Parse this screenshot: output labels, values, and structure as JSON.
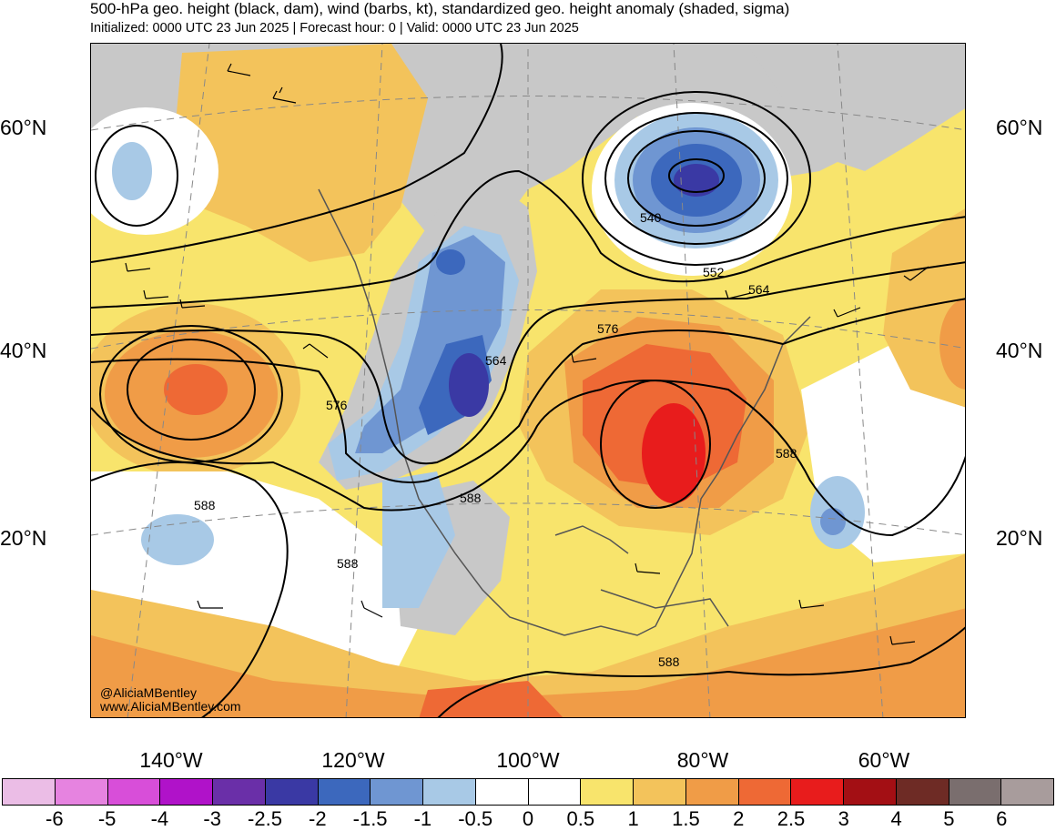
{
  "title": "500-hPa geo. height (black, dam), wind (barbs, kt), standardized geo. height anomaly (shaded, sigma)",
  "subtitle": "Initialized: 0000 UTC 23 Jun 2025 | Forecast hour: 0 | Valid: 0000 UTC 23 Jun 2025",
  "lat_labels": [
    "60°N",
    "40°N",
    "20°N"
  ],
  "lon_labels": [
    "140°W",
    "120°W",
    "100°W",
    "80°W",
    "60°W"
  ],
  "contour_labels": [
    "540",
    "552",
    "564",
    "576",
    "564",
    "576",
    "588",
    "588",
    "588",
    "588",
    "588"
  ],
  "credit": {
    "handle": "@AliciaMBentley",
    "site": "www.AliciaMBentley.com"
  },
  "colorbar": {
    "labels": [
      "-6",
      "-5",
      "-4",
      "-3",
      "-2.5",
      "-2",
      "-1.5",
      "-1",
      "-0.5",
      "0",
      "0.5",
      "1",
      "1.5",
      "2",
      "2.5",
      "3",
      "4",
      "5",
      "6"
    ],
    "colors": [
      "#ebbde6",
      "#e683e0",
      "#d84ed9",
      "#b012c9",
      "#6a2fa8",
      "#3a39a4",
      "#3c68bd",
      "#6f96d2",
      "#a8c9e6",
      "#ffffff",
      "#ffffff",
      "#f8e46c",
      "#f3c35b",
      "#f09c47",
      "#ee6935",
      "#e81c1c",
      "#a30f14",
      "#6e2b25",
      "#7a6e6e",
      "#a89c9c"
    ]
  },
  "colors": {
    "land_gray": "#c8c8c8",
    "contour": "#000000",
    "coast": "#555555"
  }
}
